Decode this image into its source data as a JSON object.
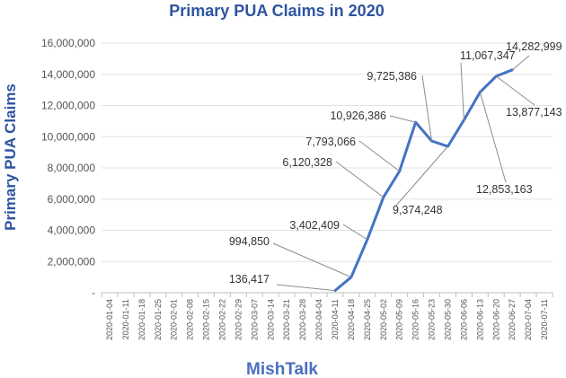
{
  "chart_data": {
    "type": "line",
    "title": "Primary PUA Claims in 2020",
    "ylabel": "Primary  PUA  Claims",
    "xlabel": "",
    "ylim": [
      0,
      16000000
    ],
    "ytick_labels": [
      "-",
      "2,000,000",
      "4,000,000",
      "6,000,000",
      "8,000,000",
      "10,000,000",
      "12,000,000",
      "14,000,000",
      "16,000,000"
    ],
    "ytick_values": [
      0,
      2000000,
      4000000,
      6000000,
      8000000,
      10000000,
      12000000,
      14000000,
      16000000
    ],
    "categories": [
      "2020-01-04",
      "2020-01-11",
      "2020-01-18",
      "2020-01-25",
      "2020-02-01",
      "2020-02-08",
      "2020-02-15",
      "2020-02-22",
      "2020-02-29",
      "2020-03-07",
      "2020-03-14",
      "2020-03-21",
      "2020-03-28",
      "2020-04-04",
      "2020-04-11",
      "2020-04-18",
      "2020-04-25",
      "2020-05-02",
      "2020-05-09",
      "2020-05-16",
      "2020-05-23",
      "2020-05-30",
      "2020-06-06",
      "2020-06-13",
      "2020-06-20",
      "2020-06-27",
      "2020-07-04",
      "2020-07-11"
    ],
    "series": [
      {
        "name": "",
        "color": "#4472c4",
        "points": [
          {
            "x": "2020-04-11",
            "y": 136417,
            "label": "136,417"
          },
          {
            "x": "2020-04-18",
            "y": 994850,
            "label": "994,850"
          },
          {
            "x": "2020-04-25",
            "y": 3402409,
            "label": "3,402,409"
          },
          {
            "x": "2020-05-02",
            "y": 6120328,
            "label": "6,120,328"
          },
          {
            "x": "2020-05-09",
            "y": 7793066,
            "label": "7,793,066"
          },
          {
            "x": "2020-05-16",
            "y": 10926386,
            "label": "10,926,386"
          },
          {
            "x": "2020-05-23",
            "y": 9725386,
            "label": "9,725,386"
          },
          {
            "x": "2020-05-30",
            "y": 9374248,
            "label": "9,374,248"
          },
          {
            "x": "2020-06-06",
            "y": 11067347,
            "label": "11,067,347"
          },
          {
            "x": "2020-06-13",
            "y": 12853163,
            "label": "12,853,163"
          },
          {
            "x": "2020-06-20",
            "y": 13877143,
            "label": "13,877,143"
          },
          {
            "x": "2020-06-27",
            "y": 14282999,
            "label": "14,282,999"
          }
        ]
      }
    ],
    "grid": true,
    "legend": "none"
  },
  "footer": {
    "brand": "MishTalk"
  }
}
